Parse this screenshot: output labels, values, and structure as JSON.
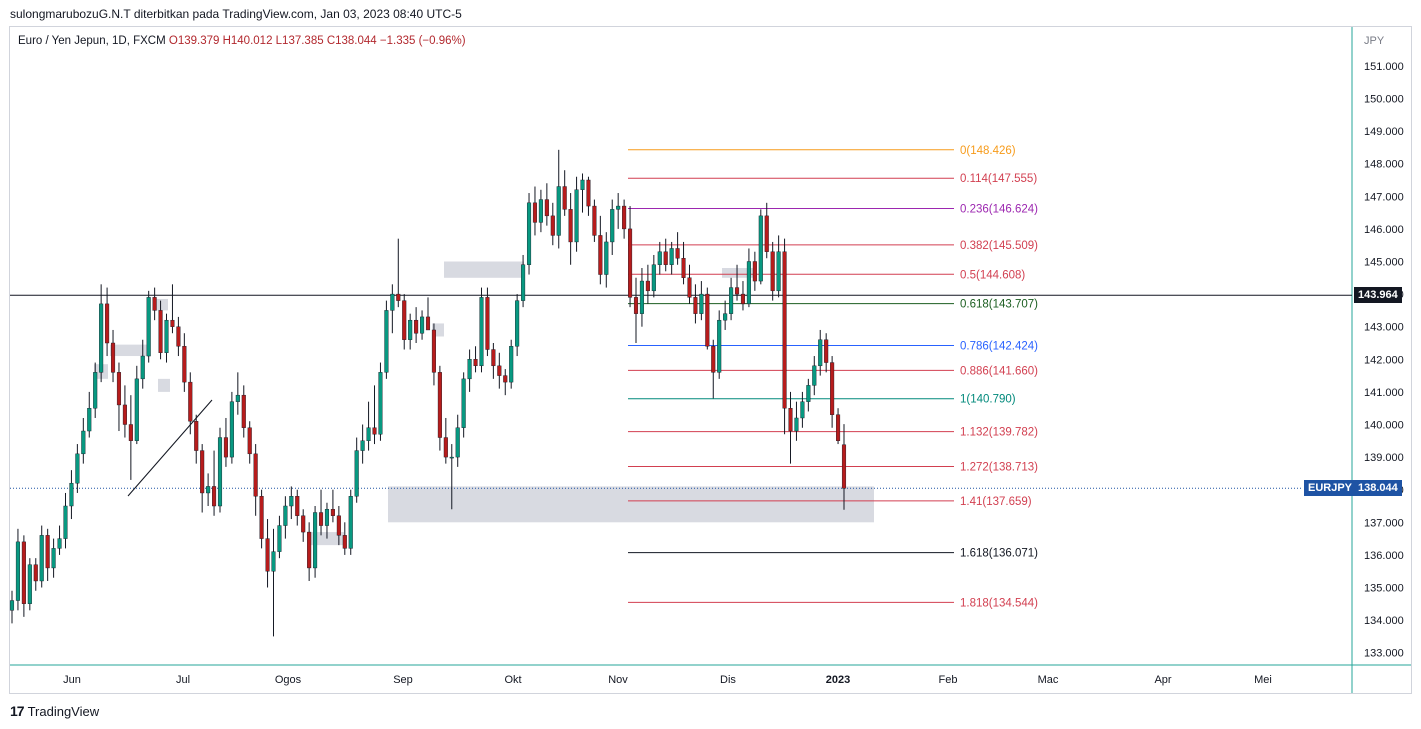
{
  "header": {
    "note": "sulongmarubozuG.N.T diterbitkan pada TradingView.com, Jan 03, 2023 08:40 UTC-5"
  },
  "legend": {
    "symbol": "Euro / Yen Jepun, 1D, FXCM",
    "ohlc": "O139.379  H140.012  L137.385  C138.044  −1.335 (−0.96%)"
  },
  "footer": {
    "logo": "17",
    "brand": "TradingView"
  },
  "colors": {
    "up": "#089981",
    "down": "#b71c1c",
    "frame": "#d1d4dc",
    "zone": "#d1d4dc"
  },
  "chart_data": {
    "type": "candlestick",
    "currency_label": "JPY",
    "y_ticks": [
      "133.000",
      "134.000",
      "135.000",
      "136.000",
      "137.000",
      "138.000",
      "139.000",
      "140.000",
      "141.000",
      "142.000",
      "143.000",
      "144.000",
      "145.000",
      "146.000",
      "147.000",
      "148.000",
      "149.000",
      "150.000",
      "151.000"
    ],
    "ylim": [
      132.6,
      152.0
    ],
    "x_tick_labels": [
      "Jun",
      "Jul",
      "Ogos",
      "Sep",
      "Okt",
      "Nov",
      "Dis",
      "2023",
      "Feb",
      "Mac",
      "Apr",
      "Mei"
    ],
    "horizontal_line": {
      "price": 143.964,
      "label": "143.964",
      "color": "#131722"
    },
    "last_price": {
      "price": 138.044,
      "symbol": "EURJPY",
      "label": "138.044",
      "color": "#1e53a4"
    },
    "fibonacci": [
      {
        "label": "0(148.426)",
        "price": 148.426,
        "color": "#f79b1a"
      },
      {
        "label": "0.114(147.555)",
        "price": 147.555,
        "color": "#d23f50"
      },
      {
        "label": "0.236(146.624)",
        "price": 146.624,
        "color": "#9c27b0"
      },
      {
        "label": "0.382(145.509)",
        "price": 145.509,
        "color": "#d23f50"
      },
      {
        "label": "0.5(144.608)",
        "price": 144.608,
        "color": "#d23f50"
      },
      {
        "label": "0.618(143.707)",
        "price": 143.707,
        "color": "#1b5e20"
      },
      {
        "label": "0.786(142.424)",
        "price": 142.424,
        "color": "#2962ff"
      },
      {
        "label": "0.886(141.660)",
        "price": 141.66,
        "color": "#d23f50"
      },
      {
        "label": "1(140.790)",
        "price": 140.79,
        "color": "#00897b"
      },
      {
        "label": "1.132(139.782)",
        "price": 139.782,
        "color": "#d23f50"
      },
      {
        "label": "1.272(138.713)",
        "price": 138.713,
        "color": "#d23f50"
      },
      {
        "label": "1.41(137.659)",
        "price": 137.659,
        "color": "#d23f50"
      },
      {
        "label": "1.618(136.071)",
        "price": 136.071,
        "color": "#131722"
      },
      {
        "label": "1.818(134.544)",
        "price": 134.544,
        "color": "#d23f50"
      }
    ],
    "zones": [
      {
        "price_top": 138.1,
        "price_bottom": 137.0
      },
      {
        "price_top": 145.0,
        "price_bottom": 144.5
      },
      {
        "price_top": 142.45,
        "price_bottom": 142.1
      },
      {
        "price_top": 143.85,
        "price_bottom": 143.5
      },
      {
        "price_top": 141.85,
        "price_bottom": 141.4
      },
      {
        "price_top": 141.4,
        "price_bottom": 141.0
      },
      {
        "price_top": 143.1,
        "price_bottom": 142.7
      },
      {
        "price_top": 136.7,
        "price_bottom": 136.3
      },
      {
        "price_top": 144.8,
        "price_bottom": 144.5
      }
    ],
    "candles": [
      [
        134.3,
        134.9,
        133.9,
        134.6
      ],
      [
        134.6,
        136.8,
        134.3,
        136.4
      ],
      [
        136.4,
        136.6,
        134.1,
        134.5
      ],
      [
        134.5,
        135.9,
        134.3,
        135.7
      ],
      [
        135.7,
        135.9,
        134.9,
        135.2
      ],
      [
        135.2,
        136.9,
        135.0,
        136.6
      ],
      [
        136.6,
        136.8,
        135.2,
        135.6
      ],
      [
        135.6,
        136.5,
        135.3,
        136.2
      ],
      [
        136.2,
        136.9,
        136.0,
        136.5
      ],
      [
        136.5,
        137.9,
        136.2,
        137.5
      ],
      [
        137.5,
        138.6,
        137.1,
        138.2
      ],
      [
        138.2,
        139.4,
        137.9,
        139.1
      ],
      [
        139.1,
        140.2,
        138.8,
        139.8
      ],
      [
        139.8,
        141.0,
        139.6,
        140.5
      ],
      [
        140.5,
        141.9,
        140.2,
        141.6
      ],
      [
        141.6,
        144.3,
        141.3,
        143.7
      ],
      [
        143.7,
        144.2,
        142.1,
        142.5
      ],
      [
        142.5,
        142.9,
        141.3,
        141.6
      ],
      [
        141.6,
        141.9,
        139.8,
        140.6
      ],
      [
        140.6,
        141.2,
        139.6,
        140.0
      ],
      [
        140.0,
        140.9,
        138.3,
        139.5
      ],
      [
        139.5,
        141.8,
        139.4,
        141.4
      ],
      [
        141.4,
        142.6,
        141.1,
        142.1
      ],
      [
        142.1,
        144.1,
        141.9,
        143.9
      ],
      [
        143.9,
        144.2,
        143.2,
        143.5
      ],
      [
        143.5,
        143.8,
        142.0,
        142.2
      ],
      [
        142.2,
        143.4,
        141.9,
        143.2
      ],
      [
        143.2,
        144.3,
        142.8,
        143.0
      ],
      [
        143.0,
        143.3,
        142.1,
        142.4
      ],
      [
        142.4,
        142.8,
        141.0,
        141.3
      ],
      [
        141.3,
        141.6,
        139.7,
        140.1
      ],
      [
        140.1,
        140.3,
        138.8,
        139.2
      ],
      [
        139.2,
        139.4,
        137.3,
        137.9
      ],
      [
        137.9,
        138.5,
        137.5,
        138.1
      ],
      [
        138.1,
        139.2,
        137.2,
        137.5
      ],
      [
        137.5,
        139.9,
        137.3,
        139.6
      ],
      [
        139.6,
        140.2,
        138.7,
        139.0
      ],
      [
        139.0,
        141.0,
        138.8,
        140.7
      ],
      [
        140.7,
        141.6,
        140.3,
        140.9
      ],
      [
        140.9,
        141.2,
        139.6,
        139.9
      ],
      [
        139.9,
        140.1,
        138.8,
        139.1
      ],
      [
        139.1,
        139.4,
        137.2,
        137.8
      ],
      [
        137.8,
        138.0,
        136.2,
        136.5
      ],
      [
        136.5,
        137.1,
        135.0,
        135.5
      ],
      [
        135.5,
        136.8,
        133.5,
        136.1
      ],
      [
        136.1,
        137.2,
        135.9,
        136.9
      ],
      [
        136.9,
        137.8,
        136.5,
        137.5
      ],
      [
        137.5,
        138.1,
        137.1,
        137.8
      ],
      [
        137.8,
        138.0,
        136.9,
        137.2
      ],
      [
        137.2,
        137.4,
        136.4,
        136.7
      ],
      [
        136.7,
        137.0,
        135.2,
        135.6
      ],
      [
        135.6,
        137.5,
        135.3,
        137.3
      ],
      [
        137.3,
        138.0,
        136.6,
        136.9
      ],
      [
        136.9,
        137.6,
        136.5,
        137.4
      ],
      [
        137.4,
        138.0,
        137.0,
        137.2
      ],
      [
        137.2,
        137.5,
        136.3,
        136.6
      ],
      [
        136.6,
        137.0,
        136.0,
        136.2
      ],
      [
        136.2,
        138.0,
        136.0,
        137.8
      ],
      [
        137.8,
        139.6,
        137.6,
        139.2
      ],
      [
        139.2,
        140.0,
        138.8,
        139.5
      ],
      [
        139.5,
        140.7,
        139.2,
        139.9
      ],
      [
        139.9,
        141.2,
        139.4,
        139.7
      ],
      [
        139.7,
        141.9,
        139.5,
        141.6
      ],
      [
        141.6,
        143.8,
        141.4,
        143.5
      ],
      [
        143.5,
        144.3,
        142.8,
        144.0
      ],
      [
        144.0,
        145.7,
        143.6,
        143.8
      ],
      [
        143.8,
        144.0,
        142.3,
        142.6
      ],
      [
        142.6,
        143.4,
        142.3,
        143.2
      ],
      [
        143.2,
        143.6,
        142.5,
        142.8
      ],
      [
        142.8,
        143.5,
        142.6,
        143.3
      ],
      [
        143.3,
        143.9,
        142.9,
        142.9
      ],
      [
        142.9,
        143.1,
        141.2,
        141.6
      ],
      [
        141.6,
        141.8,
        139.2,
        139.6
      ],
      [
        139.6,
        140.2,
        138.8,
        139.0
      ],
      [
        139.0,
        139.4,
        137.4,
        139.0
      ],
      [
        139.0,
        140.3,
        138.7,
        139.9
      ],
      [
        139.9,
        141.6,
        139.6,
        141.4
      ],
      [
        141.4,
        142.3,
        141.0,
        142.0
      ],
      [
        142.0,
        142.4,
        141.6,
        141.8
      ],
      [
        141.8,
        144.2,
        141.6,
        143.9
      ],
      [
        143.9,
        144.2,
        142.1,
        142.3
      ],
      [
        142.3,
        142.5,
        141.4,
        141.8
      ],
      [
        141.8,
        142.2,
        141.1,
        141.5
      ],
      [
        141.5,
        141.7,
        140.9,
        141.3
      ],
      [
        141.3,
        142.6,
        141.1,
        142.4
      ],
      [
        142.4,
        144.0,
        142.1,
        143.8
      ],
      [
        143.8,
        145.2,
        143.6,
        144.9
      ],
      [
        144.9,
        147.1,
        144.6,
        146.8
      ],
      [
        146.8,
        147.3,
        145.8,
        146.2
      ],
      [
        146.2,
        147.2,
        145.9,
        146.9
      ],
      [
        146.9,
        147.4,
        146.1,
        146.4
      ],
      [
        146.4,
        146.8,
        145.5,
        145.8
      ],
      [
        145.8,
        148.426,
        145.4,
        147.3
      ],
      [
        147.3,
        147.8,
        146.4,
        146.6
      ],
      [
        146.6,
        147.1,
        144.9,
        145.6
      ],
      [
        145.6,
        147.6,
        145.3,
        147.2
      ],
      [
        147.2,
        147.7,
        146.5,
        147.5
      ],
      [
        147.5,
        147.6,
        146.4,
        146.7
      ],
      [
        146.7,
        146.9,
        145.6,
        145.8
      ],
      [
        145.8,
        146.4,
        144.3,
        144.6
      ],
      [
        144.6,
        145.9,
        144.2,
        145.6
      ],
      [
        145.6,
        146.9,
        145.2,
        146.6
      ],
      [
        146.6,
        147.1,
        146.0,
        146.7
      ],
      [
        146.7,
        146.9,
        145.7,
        146.0
      ],
      [
        146.0,
        146.7,
        143.6,
        143.9
      ],
      [
        143.9,
        144.5,
        142.5,
        143.4
      ],
      [
        143.4,
        144.8,
        143.0,
        144.4
      ],
      [
        144.4,
        144.9,
        143.7,
        144.1
      ],
      [
        144.1,
        145.2,
        143.9,
        144.9
      ],
      [
        144.9,
        145.6,
        144.6,
        145.3
      ],
      [
        145.3,
        145.7,
        144.7,
        144.9
      ],
      [
        144.9,
        145.6,
        144.6,
        145.4
      ],
      [
        145.4,
        145.9,
        144.9,
        145.1
      ],
      [
        145.1,
        145.6,
        144.3,
        144.5
      ],
      [
        144.5,
        144.9,
        143.7,
        143.9
      ],
      [
        143.9,
        144.3,
        143.1,
        143.4
      ],
      [
        143.4,
        144.4,
        143.2,
        144.0
      ],
      [
        144.0,
        144.2,
        142.3,
        142.4
      ],
      [
        142.4,
        142.6,
        140.8,
        141.6
      ],
      [
        141.6,
        143.5,
        141.4,
        143.2
      ],
      [
        143.2,
        143.8,
        142.9,
        143.4
      ],
      [
        143.4,
        144.5,
        143.2,
        144.2
      ],
      [
        144.2,
        144.9,
        143.8,
        144.0
      ],
      [
        144.0,
        144.4,
        143.5,
        143.7
      ],
      [
        143.7,
        145.4,
        143.6,
        145.0
      ],
      [
        145.0,
        145.3,
        144.1,
        144.4
      ],
      [
        144.4,
        146.6,
        144.3,
        146.4
      ],
      [
        146.4,
        146.8,
        145.1,
        145.3
      ],
      [
        145.3,
        145.6,
        143.8,
        144.1
      ],
      [
        144.1,
        145.8,
        143.9,
        145.3
      ],
      [
        145.3,
        145.7,
        139.7,
        140.5
      ],
      [
        140.5,
        141.0,
        138.8,
        139.8
      ],
      [
        139.8,
        140.7,
        139.5,
        140.2
      ],
      [
        140.2,
        141.0,
        139.9,
        140.7
      ],
      [
        140.7,
        141.4,
        140.4,
        141.2
      ],
      [
        141.2,
        142.1,
        140.9,
        141.8
      ],
      [
        141.8,
        142.9,
        141.5,
        142.6
      ],
      [
        142.6,
        142.8,
        141.6,
        141.9
      ],
      [
        141.9,
        142.1,
        139.9,
        140.3
      ],
      [
        140.3,
        140.5,
        139.4,
        139.5
      ],
      [
        139.379,
        140.012,
        137.385,
        138.044
      ]
    ]
  }
}
